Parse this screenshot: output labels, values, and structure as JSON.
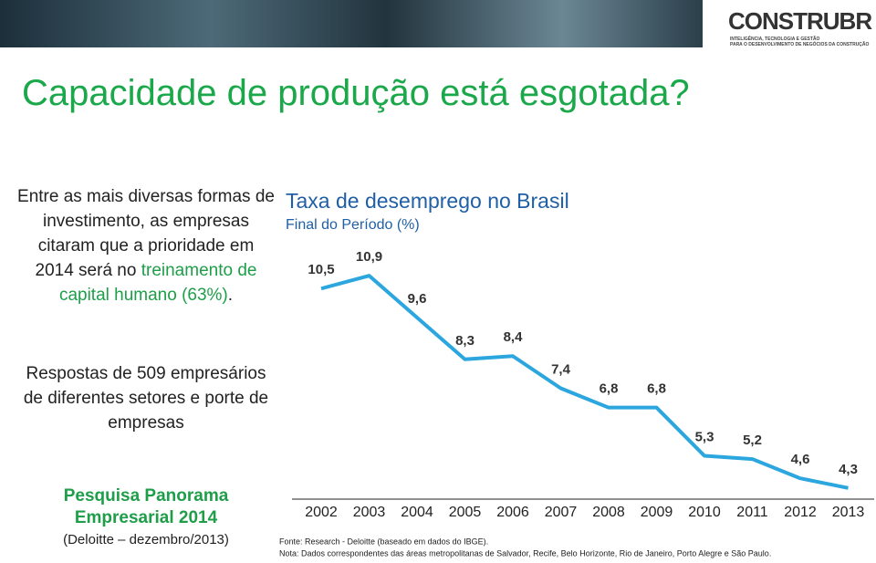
{
  "header": {
    "logo": "CONSTRUBR",
    "logo_tagline": [
      "INTELIGÊNCIA, TECNOLOGIA E GESTÃO",
      "PARA O DESENVOLVIMENTO DE NEGÓCIOS DA CONSTRUÇÃO"
    ]
  },
  "title": "Capacidade de produção está esgotada?",
  "intro": {
    "text": "Entre as mais diversas formas de investimento, as empresas citaram que a prioridade em 2014 será no",
    "highlight": "treinamento de capital humano (63%)",
    "end": "."
  },
  "respondents": "Respostas de 509 empresários de diferentes setores e porte de empresas",
  "source_box": {
    "name": "Pesquisa Panorama Empresarial 2014",
    "detail": "(Deloitte – dezembro/2013)"
  },
  "chart_data": {
    "type": "line",
    "title": "Taxa de desemprego no Brasil",
    "subtitle": "Final do Período (%)",
    "categories": [
      "2002",
      "2003",
      "2004",
      "2005",
      "2006",
      "2007",
      "2008",
      "2009",
      "2010",
      "2011",
      "2012",
      "2013"
    ],
    "values": [
      10.5,
      10.9,
      9.6,
      8.3,
      8.4,
      7.4,
      6.8,
      6.8,
      5.3,
      5.2,
      4.6,
      4.3
    ],
    "value_labels": [
      "10,5",
      "10,9",
      "9,6",
      "8,3",
      "8,4",
      "7,4",
      "6,8",
      "6,8",
      "5,3",
      "5,2",
      "4,6",
      "4,3"
    ],
    "color": "#2ba6de",
    "ylim": [
      3.5,
      11.5
    ]
  },
  "footnotes": [
    "Fonte: Research - Deloitte (baseado em dados do IBGE).",
    "Nota: Dados correspondentes das áreas metropolitanas de Salvador, Recife, Belo Horizonte, Rio de Janeiro, Porto Alegre e São Paulo."
  ]
}
